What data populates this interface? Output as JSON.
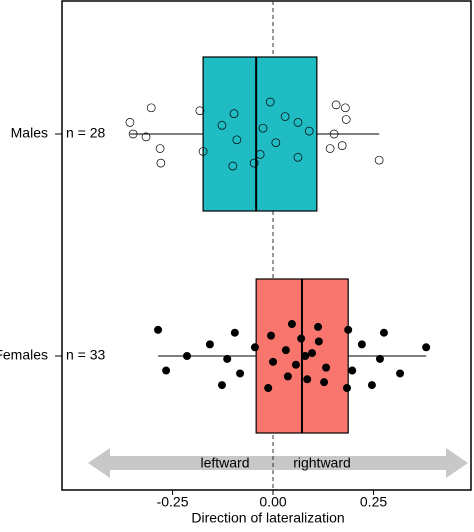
{
  "chart_data": {
    "type": "box",
    "xlabel": "Direction of lateralization",
    "xlim": [
      -0.525,
      0.495
    ],
    "xticks": [
      -0.25,
      {
        "value": 0,
        "label": "0.00"
      },
      0.25
    ],
    "reference_line": 0,
    "arrow_labels": [
      "leftward",
      "rightward"
    ],
    "series": [
      {
        "name": "Males",
        "n_label": "n = 28",
        "color": "#1fbcc4",
        "point_fill": "none",
        "whisker_low": -0.356,
        "q1": -0.174,
        "median": -0.042,
        "q3": 0.109,
        "whisker_high": 0.264,
        "points": [
          -0.348,
          -0.303,
          -0.281,
          -0.356,
          -0.279,
          -0.316,
          -0.182,
          -0.174,
          -0.127,
          -0.1,
          -0.09,
          -0.097,
          -0.032,
          -0.025,
          -0.007,
          0.007,
          0.03,
          0.062,
          0.09,
          0.157,
          0.172,
          0.182,
          0.264,
          0.152,
          0.18,
          0.142,
          0.062,
          -0.047
        ]
      },
      {
        "name": "Females",
        "n_label": "n = 33",
        "color": "#f8766d",
        "point_fill": "#000000",
        "whisker_low": -0.286,
        "q1": -0.042,
        "median": 0.072,
        "q3": 0.187,
        "whisker_high": 0.381,
        "points": [
          -0.214,
          -0.286,
          -0.266,
          -0.157,
          -0.127,
          -0.114,
          -0.095,
          -0.082,
          -0.045,
          -0.012,
          0,
          -0.005,
          0.037,
          0.032,
          0.047,
          0.057,
          0.07,
          0.085,
          0.097,
          0.112,
          0.132,
          0.114,
          0.127,
          0.08,
          0.187,
          0.197,
          0.221,
          0.246,
          0.266,
          0.276,
          0.316,
          0.381,
          0.184
        ]
      }
    ]
  }
}
